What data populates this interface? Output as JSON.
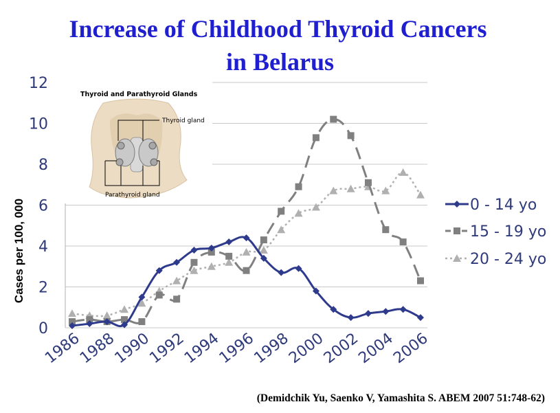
{
  "title_line1": "Increase of Childhood Thyroid Cancers",
  "title_line2": "in Belarus",
  "citation": "(Demidchik Yu, Saenko V, Yamashita S. ABEM 2007 51:748-62)",
  "inset": {
    "title": "Thyroid and Parathyroid Glands",
    "label_thyroid": "Thyroid gland",
    "label_parathyroid": "Parathyroid gland"
  },
  "chart_data": {
    "type": "line",
    "ylabel": "Cases per  100, 000",
    "xlabel": "",
    "ylim": [
      0,
      12
    ],
    "yticks": [
      0,
      2,
      4,
      6,
      8,
      10,
      12
    ],
    "xticks": [
      "1986",
      "1988",
      "1990",
      "1992",
      "1994",
      "1996",
      "1998",
      "2000",
      "2002",
      "2004",
      "2006"
    ],
    "x": [
      1986,
      1987,
      1988,
      1989,
      1990,
      1991,
      1992,
      1993,
      1994,
      1995,
      1996,
      1997,
      1998,
      1999,
      2000,
      2001,
      2002,
      2003,
      2004,
      2005,
      2006
    ],
    "grid": "horizontal",
    "legend_position": "right",
    "series": [
      {
        "name": "0 - 14 yo",
        "color": "#2e3a8c",
        "style": "solid",
        "marker": "diamond",
        "values": [
          0.1,
          0.2,
          0.3,
          0.15,
          1.5,
          2.8,
          3.2,
          3.8,
          3.9,
          4.2,
          4.4,
          3.4,
          2.7,
          2.9,
          1.8,
          0.9,
          0.5,
          0.7,
          0.8,
          0.9,
          0.5
        ]
      },
      {
        "name": "15 - 19 yo",
        "color": "#808080",
        "style": "dashed",
        "marker": "square",
        "values": [
          0.3,
          0.4,
          0.3,
          0.4,
          0.3,
          1.6,
          1.4,
          3.2,
          3.7,
          3.5,
          2.8,
          4.3,
          5.7,
          6.9,
          9.3,
          10.2,
          9.4,
          7.1,
          4.8,
          4.2,
          2.3
        ]
      },
      {
        "name": "20 - 24 yo",
        "color": "#b0b0b0",
        "style": "dotted",
        "marker": "triangle",
        "values": [
          0.7,
          0.6,
          0.6,
          0.9,
          1.2,
          1.8,
          2.3,
          2.8,
          3.0,
          3.2,
          3.7,
          3.8,
          4.8,
          5.6,
          5.9,
          6.7,
          6.8,
          6.9,
          6.7,
          7.6,
          6.5
        ]
      }
    ]
  }
}
